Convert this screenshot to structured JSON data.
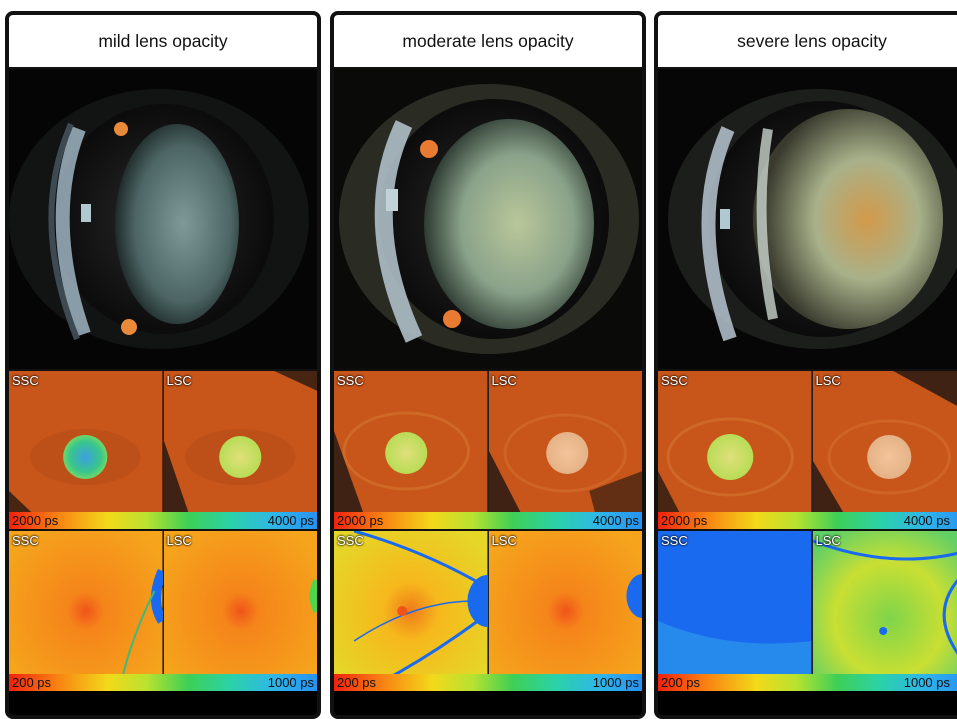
{
  "panels": [
    {
      "title": "mild lens opacity",
      "flim_labels": [
        "SSC",
        "LSC"
      ],
      "flim_scale": {
        "min": "2000 ps",
        "max": "4000 ps"
      },
      "retina_labels": [
        "SSC",
        "LSC"
      ],
      "retina_scale": {
        "min": "200 ps",
        "max": "1000 ps"
      }
    },
    {
      "title": "moderate lens opacity",
      "flim_labels": [
        "SSC",
        "LSC"
      ],
      "flim_scale": {
        "min": "2000 ps",
        "max": "4000 ps"
      },
      "retina_labels": [
        "SSC",
        "LSC"
      ],
      "retina_scale": {
        "min": "200 ps",
        "max": "1000 ps"
      }
    },
    {
      "title": "severe lens opacity",
      "flim_labels": [
        "SSC",
        "LSC"
      ],
      "flim_scale": {
        "min": "2000 ps",
        "max": "4000 ps"
      },
      "retina_labels": [
        "SSC",
        "LSC"
      ],
      "retina_scale": {
        "min": "200 ps",
        "max": "1000 ps"
      }
    }
  ],
  "colors": {
    "frame": "#111111",
    "flim_background": "#c8551a",
    "retina_orange": "#f39a1a",
    "vessel_blue": "#1a6af0"
  }
}
